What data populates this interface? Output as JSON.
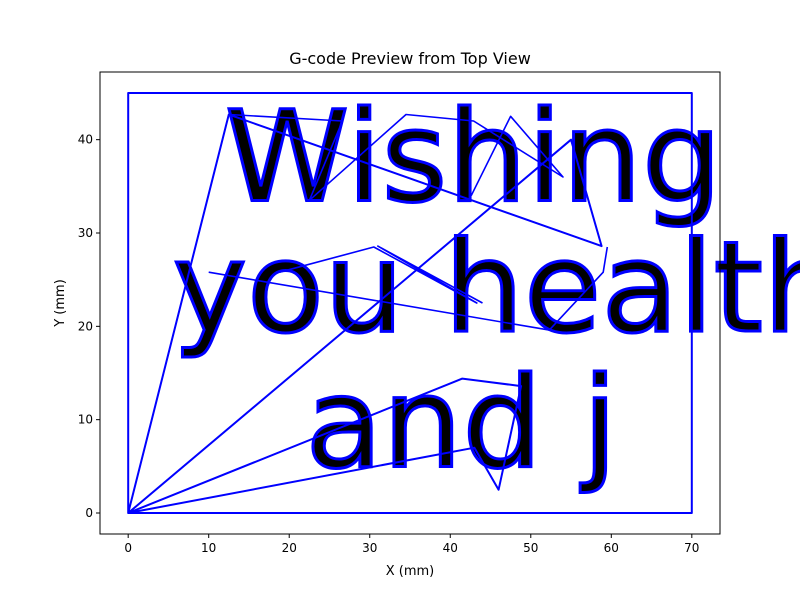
{
  "chart_data": {
    "type": "line",
    "title": "G-code Preview from Top View",
    "xlabel": "X (mm)",
    "ylabel": "Y (mm)",
    "xlim": [
      -3.5,
      73.5
    ],
    "ylim": [
      -2.25,
      47.25
    ],
    "xticks": [
      0,
      10,
      20,
      30,
      40,
      50,
      60,
      70
    ],
    "yticks": [
      0,
      10,
      20,
      30,
      40
    ],
    "grid": false,
    "line_color": "#0000ff",
    "annotations": [
      {
        "text": "Wishing",
        "x": 12,
        "y": 33.5,
        "size": 13.5
      },
      {
        "text": "you health",
        "x": 5.5,
        "y": 19.5,
        "size": 13.5
      },
      {
        "text": "and j",
        "x": 22,
        "y": 5,
        "size": 13.5
      }
    ],
    "series": [
      {
        "points": [
          [
            0,
            0
          ],
          [
            0,
            45
          ],
          [
            70,
            45
          ],
          [
            70,
            0
          ],
          [
            0,
            0
          ],
          [
            12.5,
            42.7
          ],
          [
            58.8,
            28.6
          ],
          [
            55,
            40
          ],
          [
            0,
            0
          ],
          [
            43,
            7
          ],
          [
            46,
            2.5
          ],
          [
            48.8,
            13.6
          ],
          [
            41.5,
            14.4
          ],
          [
            0,
            0
          ]
        ]
      },
      {
        "points": [
          [
            12.5,
            42.7
          ],
          [
            26.6,
            42
          ],
          [
            22.5,
            33.5
          ],
          [
            34.5,
            42.7
          ],
          [
            42.9,
            42
          ],
          [
            54,
            36
          ],
          [
            47.5,
            42.5
          ],
          [
            42.6,
            34
          ]
        ]
      },
      {
        "points": [
          [
            10,
            25.8
          ],
          [
            52.3,
            19.6
          ],
          [
            59,
            25.8
          ],
          [
            59.5,
            28.5
          ]
        ]
      },
      {
        "points": [
          [
            18.8,
            25.8
          ],
          [
            30.5,
            28.5
          ],
          [
            43.3,
            22.5
          ],
          [
            31,
            28.6
          ],
          [
            44,
            22.5
          ]
        ]
      }
    ]
  }
}
